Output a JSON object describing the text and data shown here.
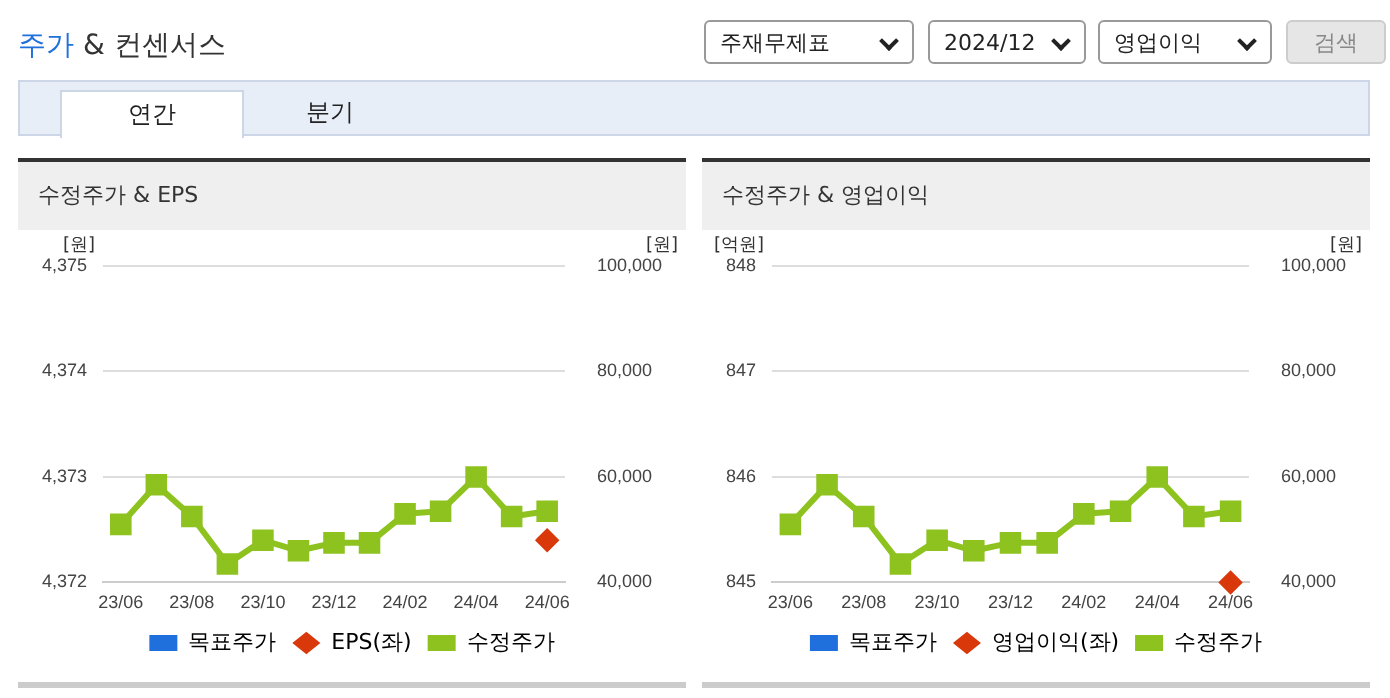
{
  "chart_data": [
    {
      "type": "other",
      "title": "주가 & 컨센서스",
      "annotations": [
        "주재무제표",
        "2024/12",
        "영업이익",
        "검색",
        "연간",
        "분기"
      ]
    },
    {
      "type": "line",
      "title": "수정주가 & EPS",
      "ylabel": "[원]",
      "y2label": "[원]",
      "categories": [
        "23/06",
        null,
        "23/08",
        null,
        "23/10",
        null,
        "23/12",
        null,
        "24/02",
        null,
        "24/04",
        null,
        "24/06"
      ],
      "series": [
        {
          "name": "목표주가",
          "color": "#1f6fdc",
          "axis": "y2",
          "marker": "square",
          "values": [
            null,
            null,
            null,
            null,
            null,
            null,
            null,
            null,
            null,
            null,
            null,
            null,
            null
          ]
        },
        {
          "name": "EPS(좌)",
          "color": "#d9380a",
          "marker": "diamond",
          "values": [
            null,
            null,
            null,
            null,
            null,
            null,
            null,
            null,
            null,
            null,
            null,
            null,
            4372.4
          ]
        },
        {
          "name": "수정주가",
          "color": "#8dc21f",
          "axis": "y2",
          "marker": "square",
          "values": [
            51000,
            58500,
            52500,
            43500,
            48000,
            46000,
            47500,
            47500,
            53000,
            53500,
            60000,
            52500,
            53500
          ]
        }
      ],
      "ylim": [
        4372,
        4375
      ],
      "yticks": [
        {
          "value": 4372,
          "label": "4,372"
        },
        {
          "value": 4373,
          "label": "4,373"
        },
        {
          "value": 4374,
          "label": "4,374"
        },
        {
          "value": 4375,
          "label": "4,375"
        }
      ],
      "y2lim": [
        40000,
        100000
      ],
      "y2ticks": [
        {
          "value": 40000,
          "label": "40,000"
        },
        {
          "value": 60000,
          "label": "60,000"
        },
        {
          "value": 80000,
          "label": "80,000"
        },
        {
          "value": 100000,
          "label": "100,000"
        }
      ],
      "grid": "y",
      "legend": "bottom"
    },
    {
      "type": "line",
      "title": "수정주가 & 영업이익",
      "ylabel": "[억원]",
      "y2label": "[원]",
      "categories": [
        "23/06",
        null,
        "23/08",
        null,
        "23/10",
        null,
        "23/12",
        null,
        "24/02",
        null,
        "24/04",
        null,
        "24/06"
      ],
      "series": [
        {
          "name": "목표주가",
          "color": "#1f6fdc",
          "axis": "y2",
          "marker": "square",
          "values": [
            null,
            null,
            null,
            null,
            null,
            null,
            null,
            null,
            null,
            null,
            null,
            null,
            null
          ]
        },
        {
          "name": "영업이익(좌)",
          "color": "#d9380a",
          "marker": "diamond",
          "values": [
            null,
            null,
            null,
            null,
            null,
            null,
            null,
            null,
            null,
            null,
            null,
            null,
            845
          ]
        },
        {
          "name": "수정주가",
          "color": "#8dc21f",
          "axis": "y2",
          "marker": "square",
          "values": [
            51000,
            58500,
            52500,
            43500,
            48000,
            46000,
            47500,
            47500,
            53000,
            53500,
            60000,
            52500,
            53500
          ]
        }
      ],
      "ylim": [
        845,
        848
      ],
      "yticks": [
        845,
        846,
        847,
        848
      ],
      "y2lim": [
        40000,
        100000
      ],
      "y2ticks": [
        {
          "value": 40000,
          "label": "40,000"
        },
        {
          "value": 60000,
          "label": "60,000"
        },
        {
          "value": 80000,
          "label": "80,000"
        },
        {
          "value": 100000,
          "label": "100,000"
        }
      ],
      "grid": "y",
      "legend": "bottom"
    }
  ]
}
